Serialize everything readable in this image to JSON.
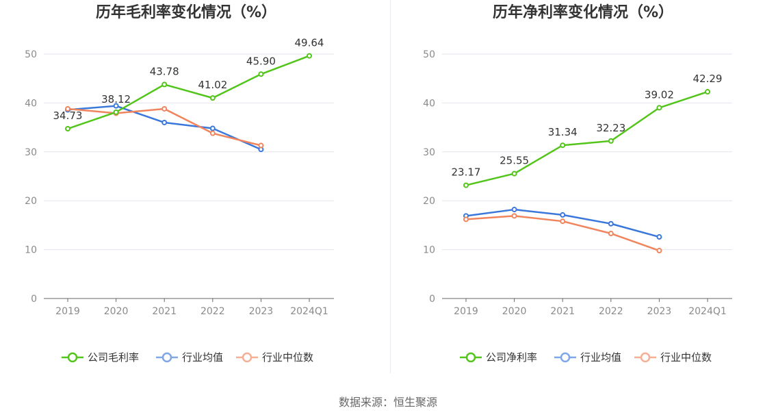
{
  "source_label": "数据来源：恒生聚源",
  "chart_data": [
    {
      "type": "line",
      "title": "历年毛利率变化情况（%）",
      "categories": [
        "2019",
        "2020",
        "2021",
        "2022",
        "2023",
        "2024Q1"
      ],
      "ylim": [
        0,
        50
      ],
      "yticks": [
        0,
        10,
        20,
        30,
        40,
        50
      ],
      "xlabel": "",
      "ylabel": "",
      "series": [
        {
          "name": "公司毛利率",
          "color": "#52c41a",
          "values": [
            34.73,
            38.12,
            43.78,
            41.02,
            45.9,
            49.64
          ],
          "labels": [
            "34.73",
            "38.12",
            "43.78",
            "41.02",
            "45.90",
            "49.64"
          ]
        },
        {
          "name": "行业均值",
          "color": "#3a77db",
          "values": [
            38.6,
            39.4,
            36.0,
            34.8,
            30.5,
            null
          ]
        },
        {
          "name": "行业中位数",
          "color": "#f0845c",
          "values": [
            38.8,
            37.9,
            38.8,
            33.8,
            31.3,
            null
          ]
        }
      ],
      "legend_position": "bottom"
    },
    {
      "type": "line",
      "title": "历年净利率变化情况（%）",
      "categories": [
        "2019",
        "2020",
        "2021",
        "2022",
        "2023",
        "2024Q1"
      ],
      "ylim": [
        0,
        50
      ],
      "yticks": [
        0,
        10,
        20,
        30,
        40,
        50
      ],
      "xlabel": "",
      "ylabel": "",
      "series": [
        {
          "name": "公司净利率",
          "color": "#52c41a",
          "values": [
            23.17,
            25.55,
            31.34,
            32.23,
            39.02,
            42.29
          ],
          "labels": [
            "23.17",
            "25.55",
            "31.34",
            "32.23",
            "39.02",
            "42.29"
          ]
        },
        {
          "name": "行业均值",
          "color": "#3a77db",
          "values": [
            16.9,
            18.2,
            17.1,
            15.3,
            12.6,
            null
          ]
        },
        {
          "name": "行业中位数",
          "color": "#f0845c",
          "values": [
            16.2,
            16.9,
            15.8,
            13.3,
            9.8,
            null
          ]
        }
      ],
      "legend_position": "bottom"
    }
  ]
}
